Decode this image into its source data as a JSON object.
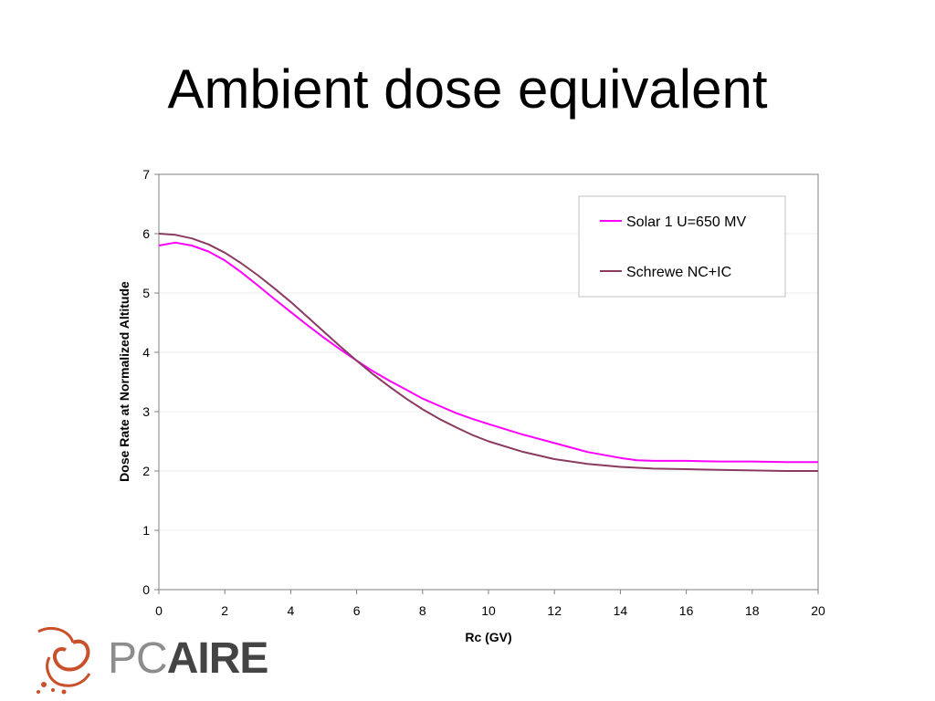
{
  "slide": {
    "title": "Ambient dose equivalent"
  },
  "logo": {
    "text_pc": "PC",
    "text_aire": "AIRE",
    "icon": "swirl-logo-icon",
    "accent_color": "#c8502a"
  },
  "chart_data": {
    "type": "line",
    "xlabel": "Rc (GV)",
    "ylabel": "Dose Rate at Normalized Altitude",
    "xlim": [
      0,
      20
    ],
    "ylim": [
      0,
      7
    ],
    "x_ticks": [
      "0",
      "2",
      "4",
      "6",
      "8",
      "10",
      "12",
      "14",
      "16",
      "18",
      "20"
    ],
    "y_ticks": [
      "0",
      "1",
      "2",
      "3",
      "4",
      "5",
      "6",
      "7"
    ],
    "grid": true,
    "legend_position": "top-right",
    "series": [
      {
        "name": "Solar 1 U=650 MV",
        "color": "#ff00ff",
        "x": [
          0,
          0.5,
          1,
          1.5,
          2,
          2.5,
          3,
          3.5,
          4,
          4.5,
          5,
          5.5,
          6,
          6.5,
          7,
          7.5,
          8,
          8.5,
          9,
          9.5,
          10,
          11,
          12,
          13,
          14,
          14.5,
          15,
          16,
          17,
          18,
          19,
          20
        ],
        "y": [
          5.8,
          5.85,
          5.8,
          5.7,
          5.55,
          5.35,
          5.13,
          4.9,
          4.68,
          4.46,
          4.25,
          4.05,
          3.86,
          3.68,
          3.52,
          3.37,
          3.22,
          3.1,
          2.98,
          2.88,
          2.79,
          2.62,
          2.47,
          2.32,
          2.22,
          2.18,
          2.17,
          2.17,
          2.16,
          2.16,
          2.15,
          2.15
        ]
      },
      {
        "name": "Schrewe NC+IC",
        "color": "#8b3a62",
        "x": [
          0,
          0.5,
          1,
          1.5,
          2,
          2.5,
          3,
          3.5,
          4,
          4.5,
          5,
          5.5,
          6,
          6.5,
          7,
          7.5,
          8,
          8.5,
          9,
          9.5,
          10,
          11,
          12,
          13,
          14,
          15,
          16,
          17,
          18,
          19,
          20
        ],
        "y": [
          6.0,
          5.98,
          5.92,
          5.82,
          5.68,
          5.5,
          5.3,
          5.08,
          4.85,
          4.6,
          4.35,
          4.1,
          3.86,
          3.63,
          3.42,
          3.22,
          3.04,
          2.88,
          2.74,
          2.61,
          2.5,
          2.33,
          2.2,
          2.12,
          2.07,
          2.04,
          2.03,
          2.02,
          2.01,
          2.0,
          2.0
        ]
      }
    ]
  }
}
